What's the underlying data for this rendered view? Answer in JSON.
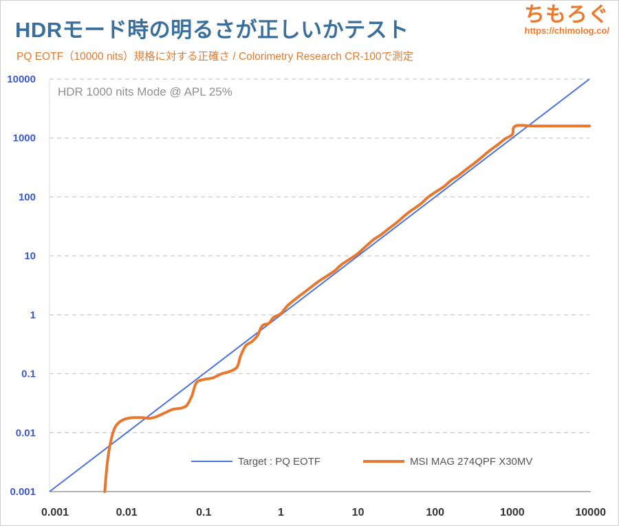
{
  "header": {
    "title": "HDRモード時の明るさが正しいかテスト",
    "subtitle": "PQ EOTF（10000 nits）規格に対する正確さ / Colorimetry Research CR-100で測定",
    "brand_name": "ちもろぐ",
    "brand_url": "https://chimolog.co/"
  },
  "colors": {
    "target": "#4a6fe0",
    "measured": "#e8772e",
    "y_tick": "#3a58c8",
    "grid": "#c8c8c8"
  },
  "chart_data": {
    "type": "line",
    "title": "HDRモード時の明るさが正しいかテスト",
    "annotation": "HDR 1000 nits Mode @ APL 25%",
    "x_scale": "log",
    "y_scale": "log",
    "xlim": [
      0.001,
      10000
    ],
    "ylim": [
      0.001,
      10000
    ],
    "x_ticks": [
      "0.001",
      "0.01",
      "0.1",
      "1",
      "10",
      "100",
      "1000",
      "10000"
    ],
    "y_ticks": [
      "0.001",
      "0.01",
      "0.1",
      "1",
      "10",
      "100",
      "1000",
      "10000"
    ],
    "legend_position": "bottom-right",
    "series": [
      {
        "name": "Target : PQ EOTF",
        "x": [
          0.001,
          10000
        ],
        "y": [
          0.001,
          10000
        ]
      },
      {
        "name": "MSI MAG 274QPF X30MV",
        "x": [
          0.0052,
          0.0056,
          0.0062,
          0.007,
          0.008,
          0.0095,
          0.012,
          0.016,
          0.02,
          0.025,
          0.032,
          0.04,
          0.05,
          0.06,
          0.07,
          0.08,
          0.1,
          0.13,
          0.17,
          0.22,
          0.27,
          0.3,
          0.35,
          0.42,
          0.5,
          0.55,
          0.6,
          0.7,
          0.8,
          1,
          1.2,
          1.5,
          2,
          2.5,
          3,
          4,
          5,
          6,
          8,
          10,
          13,
          16,
          20,
          25,
          32,
          40,
          50,
          64,
          80,
          100,
          130,
          160,
          200,
          250,
          320,
          400,
          500,
          640,
          800,
          1000,
          1100,
          2000,
          5000,
          10000
        ],
        "y": [
          0.001,
          0.003,
          0.007,
          0.012,
          0.015,
          0.017,
          0.018,
          0.018,
          0.0175,
          0.019,
          0.022,
          0.025,
          0.026,
          0.029,
          0.042,
          0.07,
          0.08,
          0.085,
          0.1,
          0.11,
          0.13,
          0.2,
          0.3,
          0.35,
          0.45,
          0.6,
          0.68,
          0.72,
          0.9,
          1.05,
          1.4,
          1.8,
          2.4,
          3,
          3.6,
          4.6,
          5.6,
          7,
          9,
          11,
          15,
          19,
          23,
          29,
          37,
          48,
          60,
          75,
          98,
          120,
          150,
          190,
          230,
          290,
          370,
          470,
          600,
          760,
          960,
          1150,
          1600,
          1600,
          1600,
          1600
        ]
      }
    ]
  }
}
